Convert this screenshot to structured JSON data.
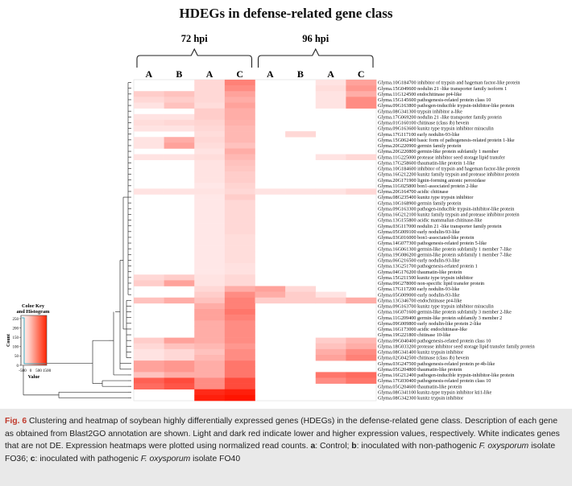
{
  "title": "HDEGs in defense-related gene class",
  "chart_data": {
    "type": "heatmap",
    "title": "HDEGs in defense-related gene class",
    "groups": [
      {
        "label": "72 hpi",
        "columns": [
          "A",
          "B",
          "A",
          "C"
        ]
      },
      {
        "label": "96 hpi",
        "columns": [
          "A",
          "B",
          "A",
          "C"
        ]
      }
    ],
    "color_key": {
      "title_line1": "Color Key",
      "title_line2": "and Histogram",
      "ylabel": "Count",
      "xlabel": "Value",
      "y_ticks": [
        "0",
        "50",
        "100",
        "150",
        "200",
        "250"
      ],
      "x_ticks": [
        "-500",
        "0",
        "500",
        "1500"
      ],
      "low_color": "#ffffff",
      "high_color": "#ff2200"
    },
    "rows": [
      {
        "label": "Glyma.10G184700 inhibitor of trypsin and hageman factor-like protein",
        "values": [
          0,
          0,
          0.1,
          0.5,
          0,
          0,
          0.05,
          0.35
        ]
      },
      {
        "label": "Glyma.15G049600 nodulin 21 -like transporter family isoform 1",
        "values": [
          0,
          0,
          0.1,
          0.45,
          0,
          0,
          0.08,
          0.4
        ]
      },
      {
        "label": "Glyma.11G124500 endochitinase pr4-like",
        "values": [
          0.15,
          0.2,
          0.1,
          0.35,
          0,
          0,
          0.05,
          0.3
        ]
      },
      {
        "label": "Glyma.15G145600 pathogenesis-related protein class 10",
        "values": [
          0.1,
          0.15,
          0.1,
          0.3,
          0,
          0,
          0.05,
          0.45
        ]
      },
      {
        "label": "Glyma.09G163800 pathogen-inducible trypsin-inhibitor-like protein",
        "values": [
          0.05,
          0.2,
          0.08,
          0.35,
          0,
          0,
          0.05,
          0.45
        ]
      },
      {
        "label": "Glyma.08G341300 trypsin inhibitor a-like",
        "values": [
          0,
          0,
          0.15,
          0.3,
          0,
          0,
          0,
          0
        ]
      },
      {
        "label": "Glyma.17G069200 nodulin 21 -like transporter family protein",
        "values": [
          0.05,
          0.05,
          0.15,
          0.3,
          0,
          0,
          0,
          0
        ]
      },
      {
        "label": "Glyma.01G160100 chitinase (class ib) hevein",
        "values": [
          0.08,
          0.1,
          0.12,
          0.28,
          0,
          0,
          0,
          0
        ]
      },
      {
        "label": "Glyma.09G163600 kunitz type trypsin inhibitor miraculin",
        "values": [
          0.05,
          0.05,
          0.1,
          0.25,
          0,
          0,
          0,
          0
        ]
      },
      {
        "label": "Glyma.17G117100 early nodulin-93-like",
        "values": [
          0,
          0,
          0.08,
          0.25,
          0,
          0.1,
          0,
          0
        ]
      },
      {
        "label": "Glyma.15G062400 basic form of pathogenesis-related protein 1-like",
        "values": [
          0.05,
          0.3,
          0.1,
          0.25,
          0,
          0,
          0,
          0
        ]
      },
      {
        "label": "Glyma.20G220900 germin family protein",
        "values": [
          0.05,
          0.35,
          0.08,
          0.2,
          0,
          0,
          0,
          0
        ]
      },
      {
        "label": "Glyma.20G220800 germin-like protein subfamily 1 member",
        "values": [
          0,
          0,
          0.05,
          0.3,
          0,
          0,
          0,
          0
        ]
      },
      {
        "label": "Glyma.11G225000 protease inhibitor seed storage lipid transfer",
        "values": [
          0.05,
          0.05,
          0.08,
          0.25,
          0,
          0,
          0.05,
          0.1
        ]
      },
      {
        "label": "Glyma.17G258600 thaumatin-like protein 1-like",
        "values": [
          0,
          0,
          0.05,
          0.2,
          0,
          0,
          0,
          0
        ]
      },
      {
        "label": "Glyma.10G184600 inhibitor of trypsin and hageman factor-like protein",
        "values": [
          0,
          0,
          0.05,
          0.18,
          0,
          0,
          0,
          0
        ]
      },
      {
        "label": "Glyma.16G212200 kunitz family trypsin and protease inhibitor protein",
        "values": [
          0,
          0,
          0.05,
          0.15,
          0,
          0,
          0,
          0
        ]
      },
      {
        "label": "Glyma.20G171900 lignin-forming anionic peroxidase",
        "values": [
          0,
          0,
          0.05,
          0.15,
          0,
          0,
          0,
          0
        ]
      },
      {
        "label": "Glyma.11G025800 bon1-associated protein 2-like",
        "values": [
          0,
          0,
          0.03,
          0.12,
          0,
          0,
          0,
          0
        ]
      },
      {
        "label": "Glyma.20G164700 acidic chitinase",
        "values": [
          0.05,
          0.05,
          0.05,
          0.1,
          0.05,
          0.05,
          0.05,
          0.1
        ]
      },
      {
        "label": "Glyma.08G235400 kunitz type trypsin inhibitor",
        "values": [
          0,
          0,
          0.03,
          0.15,
          0,
          0,
          0,
          0
        ]
      },
      {
        "label": "Glyma.10G168900 germin family protein",
        "values": [
          0,
          0,
          0.03,
          0.1,
          0,
          0,
          0,
          0
        ]
      },
      {
        "label": "Glyma.09G163300 pathogen-inducible trypsin-inhibitor-like protein",
        "values": [
          0,
          0,
          0.03,
          0.1,
          0,
          0,
          0,
          0
        ]
      },
      {
        "label": "Glyma.16G212100 kunitz family trypsin and protease inhibitor protein",
        "values": [
          0,
          0,
          0.03,
          0.1,
          0,
          0,
          0,
          0
        ]
      },
      {
        "label": "Glyma.13G155800 acidic mammalian chitinase-like",
        "values": [
          0,
          0,
          0.03,
          0.1,
          0,
          0,
          0,
          0
        ]
      },
      {
        "label": "Glyma.03G117000 nodulin 21 -like transporter family protein",
        "values": [
          0,
          0,
          0.03,
          0.1,
          0,
          0,
          0,
          0
        ]
      },
      {
        "label": "Glyma.05G009100 early nodulin-93-like",
        "values": [
          0,
          0,
          0.03,
          0.1,
          0,
          0,
          0,
          0
        ]
      },
      {
        "label": "Glyma.03G016000 bon1-associated-like protein",
        "values": [
          0,
          0,
          0.03,
          0.08,
          0,
          0,
          0,
          0
        ]
      },
      {
        "label": "Glyma.14G077300 pathogenesis-related protein 5-like",
        "values": [
          0,
          0,
          0.03,
          0.08,
          0,
          0,
          0,
          0
        ]
      },
      {
        "label": "Glyma.16G061300 germin-like protein subfamily 1 member 7-like",
        "values": [
          0,
          0,
          0.03,
          0.08,
          0,
          0,
          0,
          0
        ]
      },
      {
        "label": "Glyma.19G086200 germin-like protein subfamily 1 member 7-like",
        "values": [
          0,
          0,
          0.03,
          0.08,
          0,
          0,
          0,
          0
        ]
      },
      {
        "label": "Glyma.06G216500 early nodulin-93-like",
        "values": [
          0,
          0,
          0.03,
          0.08,
          0,
          0,
          0,
          0
        ]
      },
      {
        "label": "Glyma.13G251700 pathogenesis-related protein 1",
        "values": [
          0,
          0,
          0.03,
          0.06,
          0,
          0,
          0,
          0
        ]
      },
      {
        "label": "Glyma.04G176200 thaumatin-like protein",
        "values": [
          0,
          0,
          0.03,
          0.06,
          0,
          0,
          0,
          0
        ]
      },
      {
        "label": "Glyma.15G211500 kunitz type trypsin inhibitor",
        "values": [
          0.1,
          0.15,
          0.05,
          0.1,
          0,
          0,
          0,
          0
        ]
      },
      {
        "label": "Glyma.09G278000 non-specific lipid transfer protein",
        "values": [
          0.15,
          0.35,
          0.05,
          0.1,
          0,
          0,
          0,
          0
        ]
      },
      {
        "label": "Glyma.17G117200 early nodulin-93-like",
        "values": [
          0,
          0,
          0.1,
          0.3,
          0.35,
          0.1,
          0,
          0
        ]
      },
      {
        "label": "Glyma.05G009000 early nodulin-93-like",
        "values": [
          0,
          0,
          0.15,
          0.45,
          0.3,
          0.15,
          0.05,
          0
        ]
      },
      {
        "label": "Glyma.13G346700 endochitinase pr4-like",
        "values": [
          0.2,
          0.3,
          0.2,
          0.5,
          0.15,
          0.15,
          0.15,
          0.3
        ]
      },
      {
        "label": "Glyma.09G163700 kunitz type trypsin inhibitor miraculin",
        "values": [
          0,
          0,
          0.3,
          0.5,
          0,
          0,
          0,
          0
        ]
      },
      {
        "label": "Glyma.16G071600 germin-like protein subfamily 3 member 2-like",
        "values": [
          0,
          0,
          0.35,
          0.55,
          0,
          0,
          0,
          0
        ]
      },
      {
        "label": "Glyma.11G209400 germin-like protein subfamily 3 member 2",
        "values": [
          0,
          0,
          0.35,
          0.5,
          0,
          0,
          0,
          0
        ]
      },
      {
        "label": "Glyma.09G009800 early nodulin-like protein 2-like",
        "values": [
          0,
          0,
          0.3,
          0.45,
          0,
          0,
          0,
          0
        ]
      },
      {
        "label": "Glyma.16G173000 acidic endochitinase-like",
        "values": [
          0,
          0,
          0.3,
          0.45,
          0,
          0,
          0,
          0
        ]
      },
      {
        "label": "Glyma.19G221800 chitinase 10-like",
        "values": [
          0,
          0,
          0.3,
          0.45,
          0,
          0,
          0,
          0
        ]
      },
      {
        "label": "Glyma.09G040400 pathogenesis-related protein class 10",
        "values": [
          0.15,
          0.35,
          0.3,
          0.45,
          0,
          0,
          0.15,
          0.25
        ]
      },
      {
        "label": "Glyma.18G033200 protease inhibitor seed storage lipid transfer family protein",
        "values": [
          0.1,
          0.2,
          0.25,
          0.4,
          0,
          0,
          0.2,
          0.3
        ]
      },
      {
        "label": "Glyma.08G341400 kunitz trypsin inhibitor",
        "values": [
          0.05,
          0.1,
          0.2,
          0.45,
          0,
          0,
          0.3,
          0.45
        ]
      },
      {
        "label": "Glyma.02G042500 chitinase (class ib) hevein",
        "values": [
          0.05,
          0.1,
          0.25,
          0.45,
          0,
          0,
          0.35,
          0.5
        ]
      },
      {
        "label": "Glyma.03G247500 pathogenesis-related protein pr-4b-like",
        "values": [
          0.35,
          0.4,
          0.3,
          0.55,
          0,
          0,
          0,
          0
        ]
      },
      {
        "label": "Glyma.05G204800 thaumatin-like protein",
        "values": [
          0.35,
          0.4,
          0.3,
          0.55,
          0,
          0,
          0,
          0
        ]
      },
      {
        "label": "Glyma.16G212400 pathogen-inducible trypsin-inhibitor-like protein",
        "values": [
          0.2,
          0.3,
          0.3,
          0.55,
          0,
          0,
          0.55,
          0.6
        ]
      },
      {
        "label": "Glyma.17G030400 pathogenesis-related protein class 10",
        "values": [
          0.65,
          0.75,
          0.45,
          0.75,
          0,
          0,
          0.45,
          0.55
        ]
      },
      {
        "label": "Glyma.05G204600 thaumatin-like protein",
        "values": [
          0.6,
          0.7,
          0.45,
          0.75,
          0,
          0,
          0,
          0
        ]
      },
      {
        "label": "Glyma.08G341100 kunitz-type trypsin inhibitor kti1-like",
        "values": [
          0,
          0,
          0.9,
          0.95,
          0,
          0,
          0,
          0
        ]
      },
      {
        "label": "Glyma.08G342300 kunitz trypsin inhibitor",
        "values": [
          0,
          0,
          0.95,
          1.0,
          0,
          0,
          0,
          0
        ]
      }
    ]
  },
  "caption": {
    "fig_label": "Fig. 6",
    "text_1": " Clustering and heatmap of soybean highly differentially expressed genes (HDEGs) in the defense-related gene class. Description of each gene as obtained from Blast2GO annotation are shown. Light and dark red indicate lower and higher expression values, respectively. White indicates genes that are not DE. Expression heatmaps were plotted using normalized read counts. ",
    "label_a": "a",
    "text_2": ": Control; ",
    "label_b": "b",
    "text_3": ": inoculated with non-pathogenic ",
    "species_1": "F. oxysporum",
    "text_4": " isolate FO36; ",
    "label_c": "c",
    "text_5": ": inoculated with pathogenic ",
    "species_2": "F. oxysporum",
    "text_6": " isolate FO40"
  }
}
